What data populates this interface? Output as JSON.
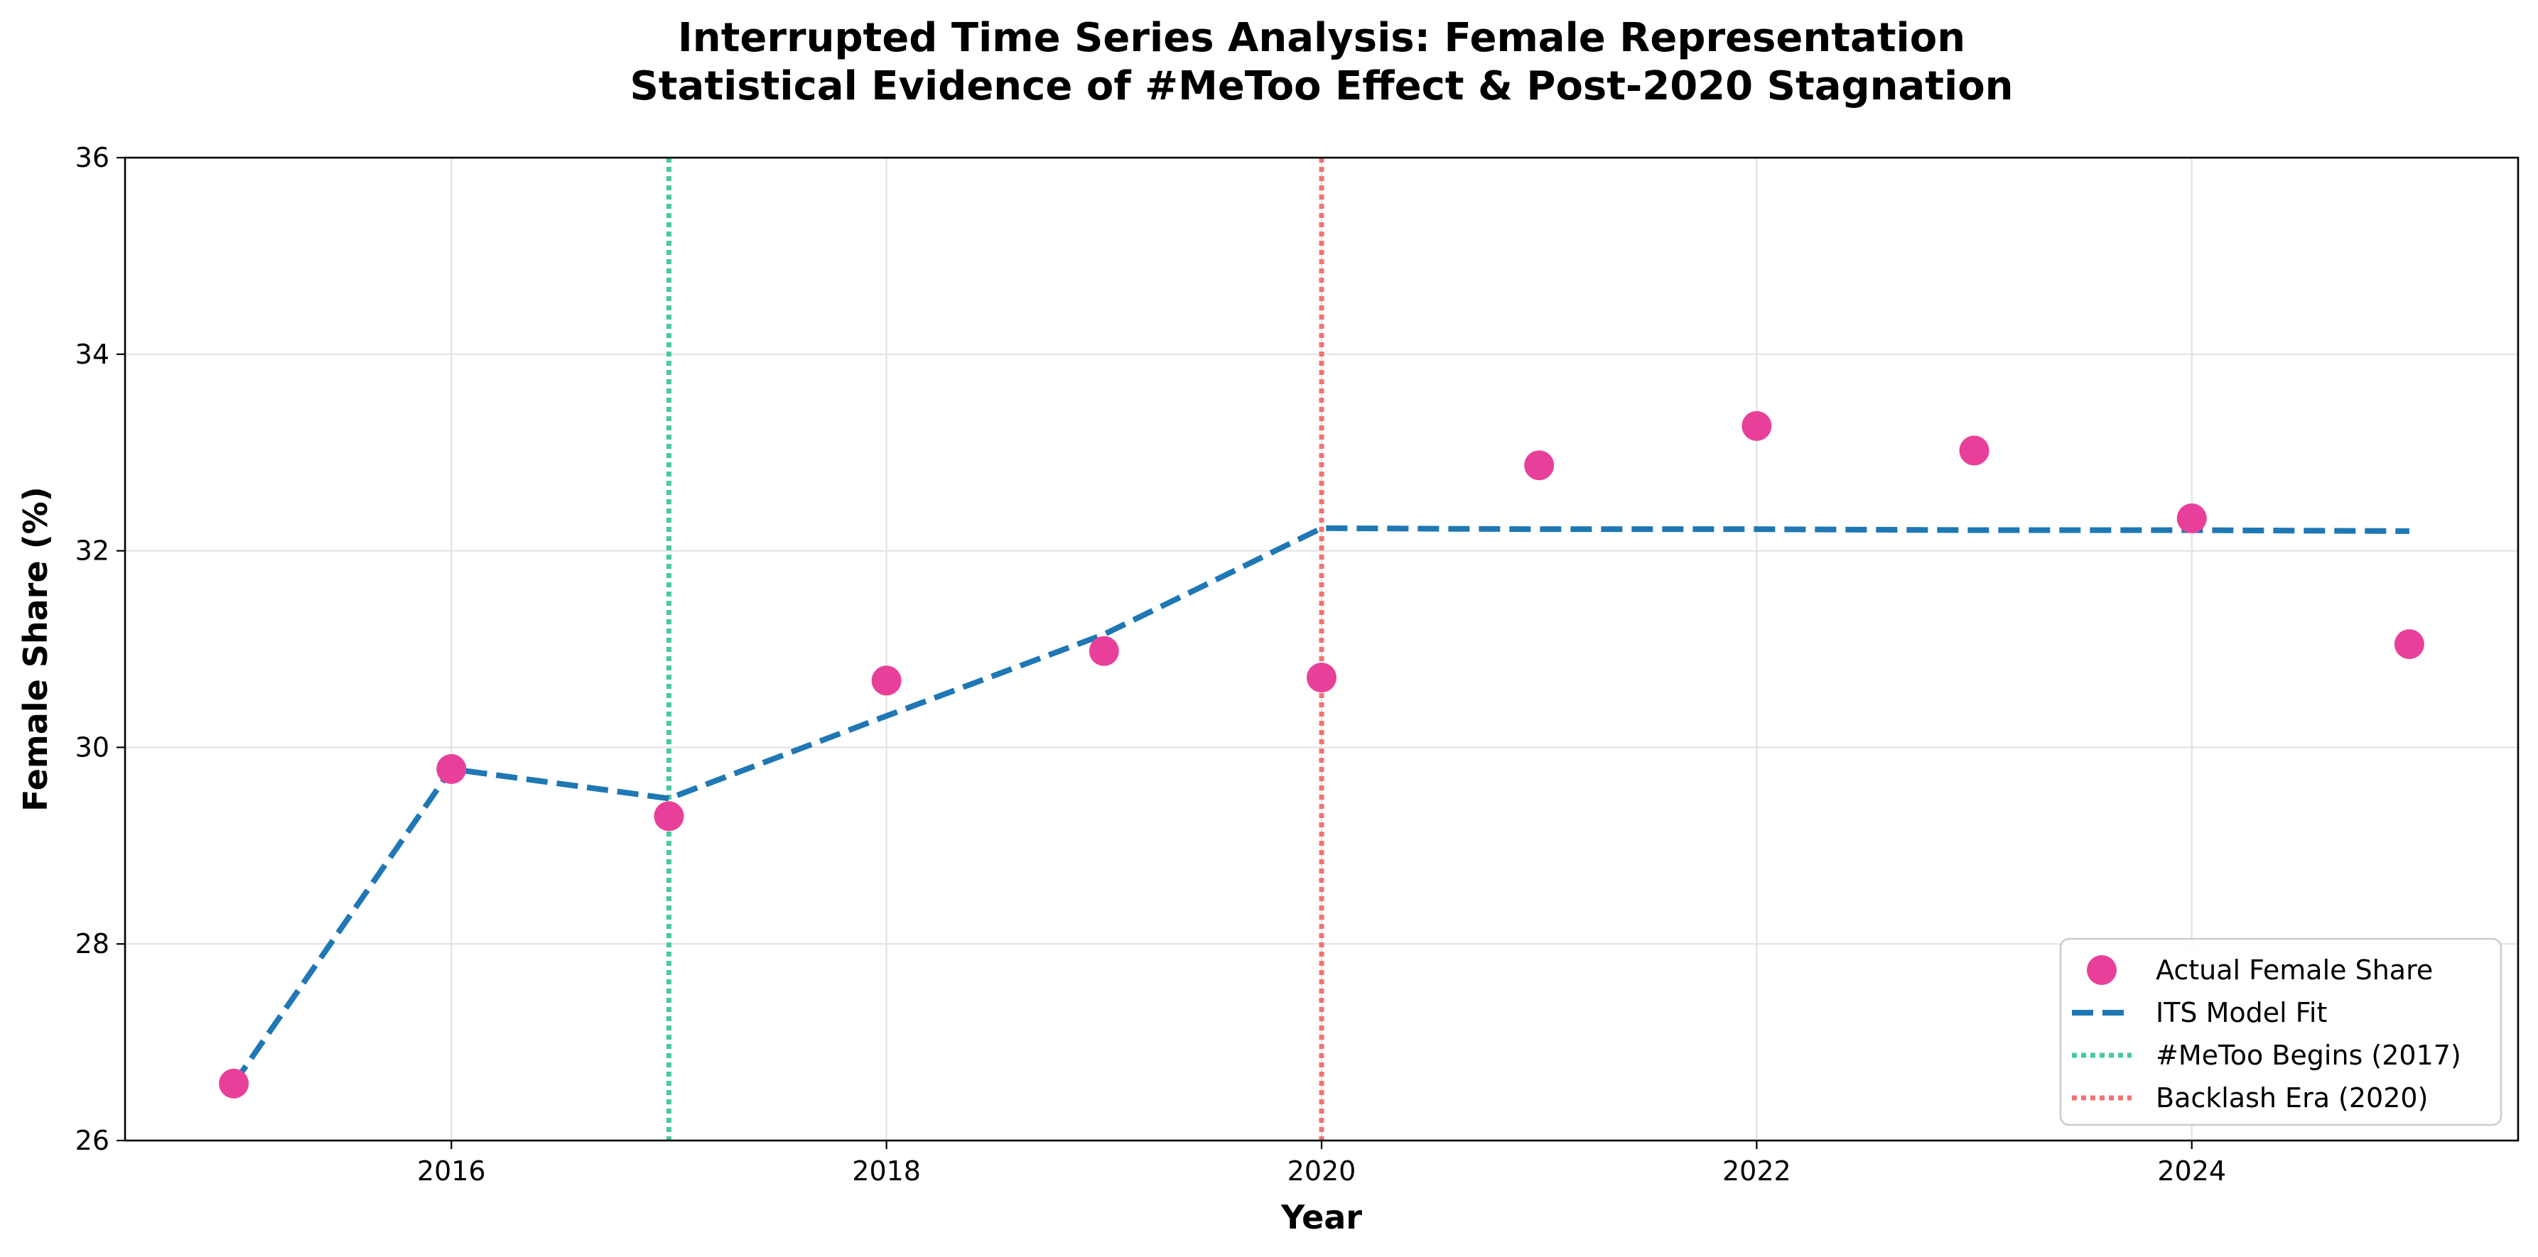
{
  "chart_data": {
    "type": "line",
    "title": "Interrupted Time Series Analysis: Female Representation",
    "subtitle": "Statistical Evidence of #MeToo Effect & Post-2020 Stagnation",
    "xlabel": "Year",
    "ylabel": "Female Share (%)",
    "xlim": [
      2014.5,
      2025.5
    ],
    "ylim": [
      26,
      36
    ],
    "xticks": [
      2016,
      2018,
      2020,
      2022,
      2024
    ],
    "yticks": [
      26,
      28,
      30,
      32,
      34,
      36
    ],
    "grid": true,
    "legend_position": "lower-right",
    "series": [
      {
        "name": "Actual Female Share",
        "kind": "scatter",
        "color": "#e8409a",
        "x": [
          2015,
          2016,
          2017,
          2018,
          2019,
          2020,
          2021,
          2022,
          2023,
          2024,
          2025
        ],
        "y": [
          26.58,
          29.78,
          29.3,
          30.68,
          30.98,
          30.71,
          32.87,
          33.27,
          33.02,
          32.33,
          31.05
        ]
      },
      {
        "name": "ITS Model Fit",
        "kind": "line",
        "style": "dashed",
        "color": "#1f77b4",
        "x": [
          2015,
          2016,
          2017,
          2018,
          2019,
          2020,
          2021,
          2022,
          2023,
          2024,
          2025
        ],
        "y": [
          26.58,
          29.78,
          29.48,
          30.32,
          31.15,
          32.23,
          32.22,
          32.22,
          32.21,
          32.21,
          32.2
        ]
      }
    ],
    "vlines": [
      {
        "name": "#MeToo Begins (2017)",
        "x": 2017,
        "color": "#48c9a0",
        "style": "dotted"
      },
      {
        "name": "Backlash Era (2020)",
        "x": 2020,
        "color": "#f07474",
        "style": "dotted"
      }
    ]
  }
}
